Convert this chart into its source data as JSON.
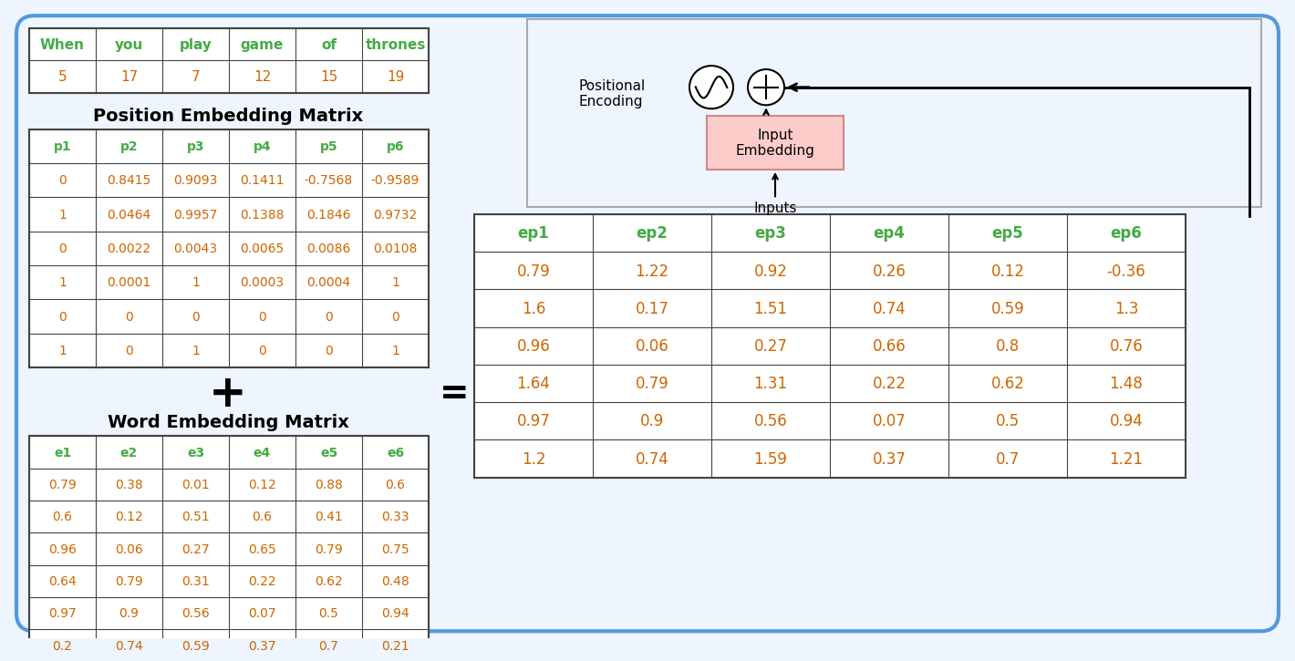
{
  "bg_color": "#eef5ff",
  "border_color": "#5599dd",
  "words": [
    "When",
    "you",
    "play",
    "game",
    "of",
    "thrones"
  ],
  "word_ids": [
    "5",
    "17",
    "7",
    "12",
    "15",
    "19"
  ],
  "pos_headers": [
    "p1",
    "p2",
    "p3",
    "p4",
    "p5",
    "p6"
  ],
  "pos_data": [
    [
      "0",
      "0.8415",
      "0.9093",
      "0.1411",
      "-0.7568",
      "-0.9589"
    ],
    [
      "1",
      "0.0464",
      "0.9957",
      "0.1388",
      "0.1846",
      "0.9732"
    ],
    [
      "0",
      "0.0022",
      "0.0043",
      "0.0065",
      "0.0086",
      "0.0108"
    ],
    [
      "1",
      "0.0001",
      "1",
      "0.0003",
      "0.0004",
      "1"
    ],
    [
      "0",
      "0",
      "0",
      "0",
      "0",
      "0"
    ],
    [
      "1",
      "0",
      "1",
      "0",
      "0",
      "1"
    ]
  ],
  "word_headers": [
    "e1",
    "e2",
    "e3",
    "e4",
    "e5",
    "e6"
  ],
  "word_data": [
    [
      "0.79",
      "0.38",
      "0.01",
      "0.12",
      "0.88",
      "0.6"
    ],
    [
      "0.6",
      "0.12",
      "0.51",
      "0.6",
      "0.41",
      "0.33"
    ],
    [
      "0.96",
      "0.06",
      "0.27",
      "0.65",
      "0.79",
      "0.75"
    ],
    [
      "0.64",
      "0.79",
      "0.31",
      "0.22",
      "0.62",
      "0.48"
    ],
    [
      "0.97",
      "0.9",
      "0.56",
      "0.07",
      "0.5",
      "0.94"
    ],
    [
      "0.2",
      "0.74",
      "0.59",
      "0.37",
      "0.7",
      "0.21"
    ]
  ],
  "result_headers": [
    "ep1",
    "ep2",
    "ep3",
    "ep4",
    "ep5",
    "ep6"
  ],
  "result_data": [
    [
      "0.79",
      "1.22",
      "0.92",
      "0.26",
      "0.12",
      "-0.36"
    ],
    [
      "1.6",
      "0.17",
      "1.51",
      "0.74",
      "0.59",
      "1.3"
    ],
    [
      "0.96",
      "0.06",
      "0.27",
      "0.66",
      "0.8",
      "0.76"
    ],
    [
      "1.64",
      "0.79",
      "1.31",
      "0.22",
      "0.62",
      "1.48"
    ],
    [
      "0.97",
      "0.9",
      "0.56",
      "0.07",
      "0.5",
      "0.94"
    ],
    [
      "1.2",
      "0.74",
      "1.59",
      "0.37",
      "0.7",
      "1.21"
    ]
  ],
  "header_color": "#44aa44",
  "data_color": "#cc6600",
  "table_border": "#444444",
  "pos_title": "Position Embedding Matrix",
  "word_title": "Word Embedding Matrix",
  "plus_symbol": "+",
  "equals_symbol": "=",
  "input_embed_color": "#ffcccc",
  "input_embed_border": "#cc8888",
  "positional_enc_label": "Positional\nEncoding",
  "input_embed_label": "Input\nEmbedding",
  "inputs_label": "Inputs",
  "diag_box_border": "#aaaaaa"
}
